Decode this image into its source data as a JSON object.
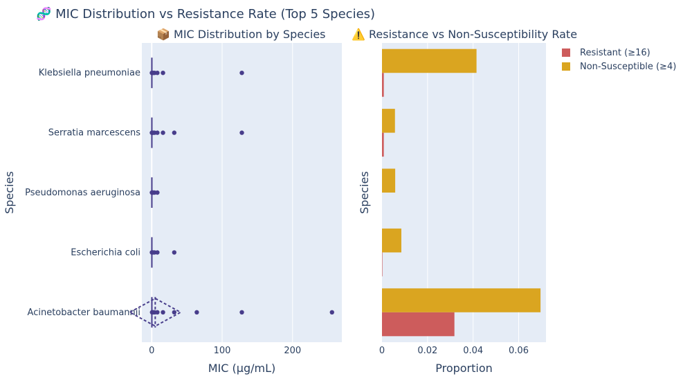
{
  "title": "🧬 MIC Distribution vs Resistance Rate (Top 5 Species)",
  "subplot_titles": [
    "📦 MIC Distribution by Species",
    "⚠️ Resistance vs Non-Susceptibility Rate"
  ],
  "colors": {
    "plot_bg": "#e5ecf6",
    "box": "#483d8b",
    "resistant": "#cd5c5c",
    "non_susceptible": "#daa520"
  },
  "chart_data": [
    {
      "type": "box",
      "title": "📦 MIC Distribution by Species",
      "xlabel": "MIC (µg/mL)",
      "ylabel": "Species",
      "xlim": [
        -14,
        270
      ],
      "xticks": [
        0,
        100,
        200
      ],
      "categories": [
        "Acinetobacter baumannii",
        "Escherichia coli",
        "Pseudomonas aeruginosa",
        "Serratia marcescens",
        "Klebsiella pneumoniae"
      ],
      "series": [
        {
          "category": "Klebsiella pneumoniae",
          "outliers": [
            0.25,
            0.5,
            1,
            2,
            4,
            8,
            16,
            128
          ]
        },
        {
          "category": "Serratia marcescens",
          "outliers": [
            0.25,
            0.5,
            1,
            2,
            4,
            8,
            16,
            32,
            128
          ]
        },
        {
          "category": "Pseudomonas aeruginosa",
          "outliers": [
            0.25,
            0.5,
            1,
            2,
            4,
            8
          ]
        },
        {
          "category": "Escherichia coli",
          "outliers": [
            0.25,
            0.5,
            1,
            2,
            4,
            8,
            32
          ]
        },
        {
          "category": "Acinetobacter baumannii",
          "outliers": [
            0.5,
            1,
            2,
            4,
            8,
            16,
            32,
            64,
            128,
            256
          ],
          "mean": 5,
          "sd": 36
        }
      ]
    },
    {
      "type": "bar",
      "orientation": "horizontal",
      "title": "⚠️ Resistance vs Non-Susceptibility Rate",
      "xlabel": "Proportion",
      "ylabel": "Species",
      "xlim": [
        0,
        0.072
      ],
      "xticks": [
        0,
        0.02,
        0.04,
        0.06
      ],
      "xtick_labels": [
        "0",
        "0.02",
        "0.04",
        "0.06"
      ],
      "categories": [
        "Acinetobacter baumannii",
        "Escherichia coli",
        "Pseudomonas aeruginosa",
        "Serratia marcescens",
        "Klebsiella pneumoniae"
      ],
      "series": [
        {
          "name": "Resistant (≥16)",
          "values": [
            0.0318,
            0.0001,
            0,
            0.0008,
            0.0008
          ]
        },
        {
          "name": "Non-Susceptible (≥4)",
          "values": [
            0.0696,
            0.0085,
            0.0058,
            0.0057,
            0.0415
          ]
        }
      ],
      "legend": "top-right"
    }
  ]
}
